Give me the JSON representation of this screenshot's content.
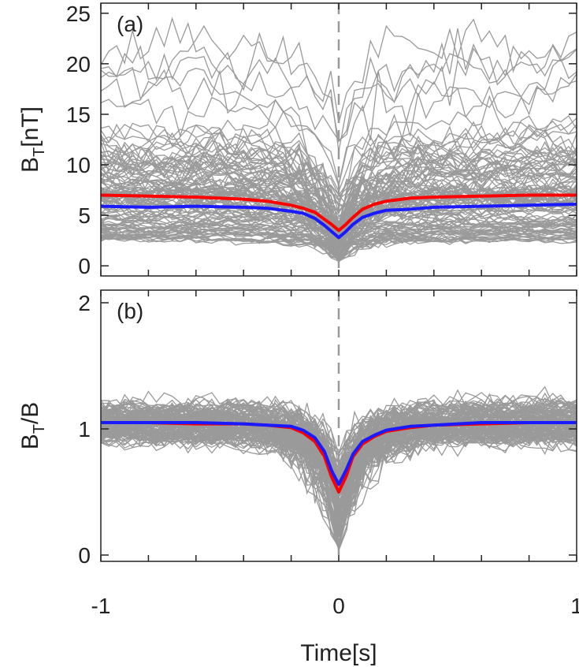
{
  "chart_data": [
    {
      "type": "line",
      "panel_label": "(a)",
      "ylabel_main": "B",
      "ylabel_sub": "T",
      "ylabel_rest": "[nT]",
      "xlim": [
        -1,
        1
      ],
      "ylim": [
        -1,
        26
      ],
      "yticks": [
        0,
        5,
        10,
        15,
        20,
        25
      ],
      "yticklabels": [
        "0",
        "5",
        "10",
        "15",
        "20",
        "25"
      ],
      "vline_x": 0,
      "grid": false,
      "background_series": {
        "count": 120,
        "color": "#9a9a9a",
        "description_values": "many gray individual event curves"
      },
      "series": [
        {
          "color": "#ff0000",
          "x": [
            -1,
            -0.8,
            -0.6,
            -0.4,
            -0.3,
            -0.2,
            -0.15,
            -0.1,
            -0.06,
            -0.03,
            0,
            0.03,
            0.06,
            0.1,
            0.15,
            0.2,
            0.3,
            0.4,
            0.6,
            0.8,
            1
          ],
          "values": [
            7.0,
            6.9,
            6.8,
            6.6,
            6.4,
            6.0,
            5.7,
            5.3,
            4.6,
            4.1,
            3.5,
            4.1,
            4.8,
            5.6,
            6.1,
            6.4,
            6.7,
            6.8,
            6.9,
            7.0,
            7.0
          ]
        },
        {
          "color": "#1a1aff",
          "x": [
            -1,
            -0.8,
            -0.6,
            -0.4,
            -0.3,
            -0.2,
            -0.15,
            -0.1,
            -0.06,
            -0.03,
            0,
            0.03,
            0.06,
            0.1,
            0.15,
            0.2,
            0.3,
            0.4,
            0.6,
            0.8,
            1
          ],
          "values": [
            5.9,
            5.8,
            5.9,
            5.8,
            5.7,
            5.4,
            5.2,
            4.7,
            4.0,
            3.4,
            2.8,
            3.4,
            4.1,
            4.8,
            5.2,
            5.5,
            5.6,
            5.8,
            5.9,
            6.0,
            6.1
          ]
        }
      ]
    },
    {
      "type": "line",
      "panel_label": "(b)",
      "ylabel_main": "B",
      "ylabel_sub": "T",
      "ylabel_rest": "/B",
      "xlabel": "Time[s]",
      "xlim": [
        -1,
        1
      ],
      "ylim": [
        -0.05,
        2.1
      ],
      "xticks": [
        -1,
        0,
        1
      ],
      "xticklabels": [
        "-1",
        "0",
        "1"
      ],
      "yticks": [
        0,
        1,
        2
      ],
      "yticklabels": [
        "0",
        "1",
        "2"
      ],
      "vline_x": 0,
      "grid": false,
      "background_series": {
        "count": 120,
        "color": "#9a9a9a",
        "description_values": "many gray individual event curves"
      },
      "series": [
        {
          "color": "#ff0000",
          "x": [
            -1,
            -0.8,
            -0.6,
            -0.4,
            -0.3,
            -0.2,
            -0.15,
            -0.1,
            -0.06,
            -0.03,
            0,
            0.03,
            0.06,
            0.1,
            0.15,
            0.2,
            0.3,
            0.4,
            0.6,
            0.8,
            1
          ],
          "values": [
            1.05,
            1.05,
            1.04,
            1.04,
            1.03,
            1.01,
            0.97,
            0.9,
            0.78,
            0.62,
            0.5,
            0.62,
            0.78,
            0.88,
            0.94,
            0.98,
            1.01,
            1.03,
            1.04,
            1.05,
            1.05
          ]
        },
        {
          "color": "#1a1aff",
          "x": [
            -1,
            -0.8,
            -0.6,
            -0.4,
            -0.3,
            -0.2,
            -0.15,
            -0.1,
            -0.06,
            -0.03,
            0,
            0.03,
            0.06,
            0.1,
            0.15,
            0.2,
            0.3,
            0.4,
            0.6,
            0.8,
            1
          ],
          "values": [
            1.05,
            1.05,
            1.05,
            1.04,
            1.03,
            1.02,
            0.99,
            0.93,
            0.82,
            0.67,
            0.56,
            0.67,
            0.8,
            0.9,
            0.95,
            0.99,
            1.02,
            1.03,
            1.05,
            1.05,
            1.05
          ]
        }
      ]
    }
  ]
}
